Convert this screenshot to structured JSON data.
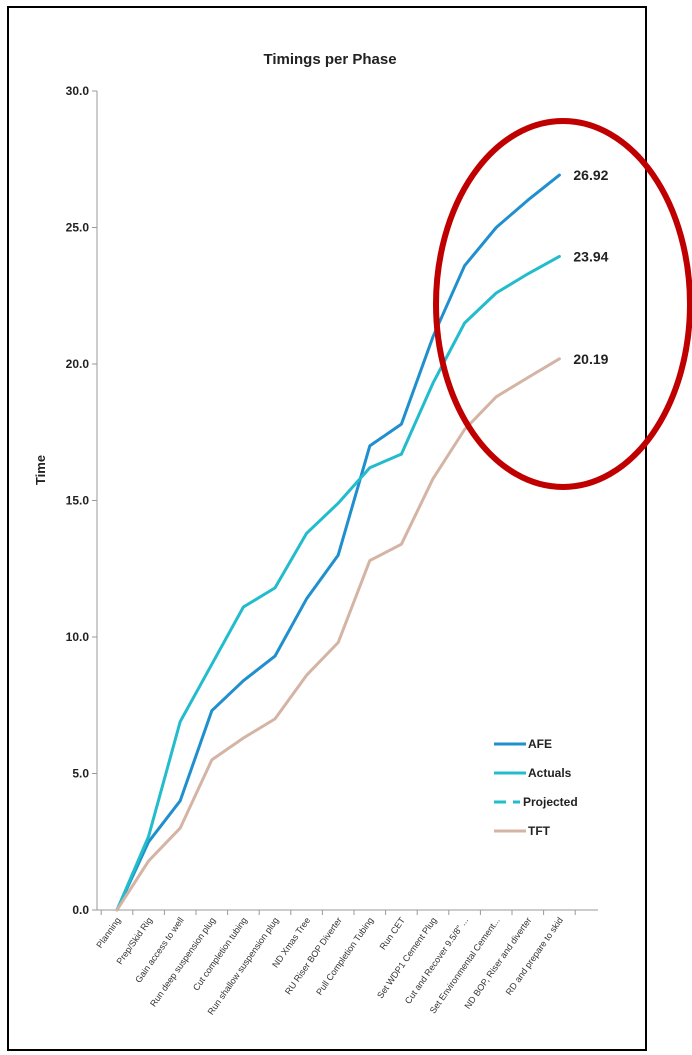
{
  "chart_data": {
    "type": "line",
    "title": "Timings per Phase",
    "ylabel": "Time",
    "xlabel": "",
    "ylim": [
      0,
      30
    ],
    "yticks": [
      "0.0",
      "5.0",
      "10.0",
      "15.0",
      "20.0",
      "25.0",
      "30.0"
    ],
    "grid": false,
    "legend_position": "bottom-right",
    "categories": [
      "Planning",
      "Prep/Skid Rig",
      "Gain access to well",
      "Run deep suspension plug",
      "Cut completion tubing",
      "Run shallow suspension plug",
      "ND Xmas Tree",
      "RU Riser BOP Diverter",
      "Pull Completion Tubing",
      "Run CET",
      "Set WDP1 Cement Plug",
      "Cut and Recover 9.5/8\" ...",
      "Set Environmental Cement...",
      "ND BOP, Riser and diverter",
      "RD and prepare to skid"
    ],
    "series": [
      {
        "name": "AFE",
        "color": "#1f8fce",
        "dashed": false,
        "values": [
          0,
          2.5,
          4.0,
          7.3,
          8.4,
          9.3,
          11.4,
          13.0,
          17.0,
          17.8,
          21.0,
          23.6,
          25.0,
          26.0,
          26.92
        ]
      },
      {
        "name": "Actuals",
        "color": "#22bccc",
        "dashed": false,
        "values": [
          0,
          2.7,
          6.9,
          9.0,
          11.1,
          11.8,
          13.8,
          14.9,
          16.2,
          16.7,
          null,
          null,
          null,
          null,
          null
        ]
      },
      {
        "name": "Projected",
        "color": "#22bccc",
        "dashed": true,
        "values": [
          null,
          null,
          null,
          null,
          null,
          null,
          null,
          null,
          null,
          16.7,
          19.3,
          21.5,
          22.6,
          23.3,
          23.94
        ]
      },
      {
        "name": "TFT",
        "color": "#d4b4a4",
        "dashed": false,
        "values": [
          0,
          1.8,
          3.0,
          5.5,
          6.3,
          7.0,
          8.6,
          9.8,
          12.8,
          13.4,
          15.8,
          17.6,
          18.8,
          19.5,
          20.19
        ]
      }
    ],
    "end_labels": [
      "26.92",
      "23.94",
      "20.19"
    ],
    "annotation": {
      "shape": "ellipse",
      "color": "#c00000"
    }
  }
}
